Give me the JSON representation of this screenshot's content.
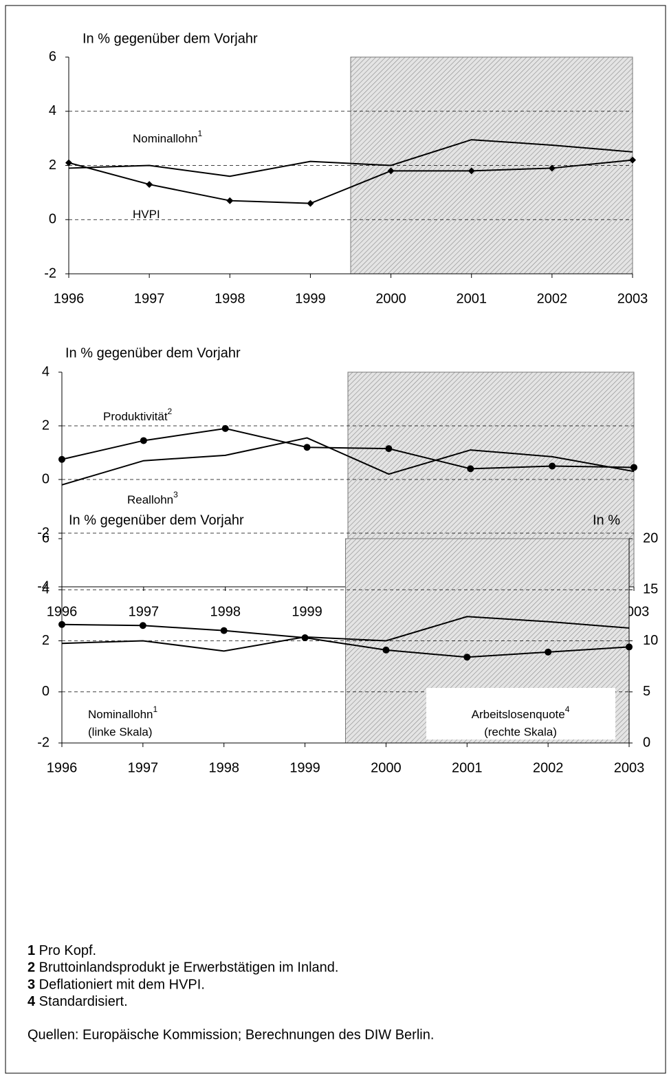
{
  "chart_data": [
    {
      "type": "line",
      "ylabel": "In % gegenüber dem Vorjahr",
      "x": [
        1996,
        1997,
        1998,
        1999,
        2000,
        2001,
        2002,
        2003
      ],
      "xlim": [
        1996,
        2003
      ],
      "xticks": [
        1996,
        1997,
        1998,
        1999,
        2000,
        2001,
        2002,
        2003
      ],
      "ylim": [
        -2,
        6
      ],
      "yticks": [
        6,
        4,
        2,
        0,
        -2
      ],
      "grid": true,
      "series": [
        {
          "name": "Nominallohn",
          "sup": "1",
          "color": "#000000",
          "marker": "none",
          "values": [
            1.9,
            2.0,
            1.6,
            2.15,
            2.0,
            2.95,
            2.75,
            2.5
          ]
        },
        {
          "name": "HVPI",
          "color": "#000000",
          "marker": "diamond",
          "values": [
            2.1,
            1.3,
            0.7,
            0.6,
            1.8,
            1.8,
            1.9,
            2.2
          ]
        }
      ]
    },
    {
      "type": "line",
      "ylabel": "In % gegenüber dem Vorjahr",
      "x": [
        1996,
        1997,
        1998,
        1999,
        2000,
        2001,
        2002,
        2003
      ],
      "xlim": [
        1996,
        2003
      ],
      "xticks": [
        1996,
        1997,
        1998,
        1999,
        2000,
        2001,
        2002,
        2003
      ],
      "ylim": [
        -4,
        4
      ],
      "yticks": [
        4,
        2,
        0,
        -2,
        -4
      ],
      "grid": true,
      "series": [
        {
          "name": "Produktivität",
          "sup": "2",
          "color": "#000000",
          "marker": "circle",
          "values": [
            0.75,
            1.45,
            1.9,
            1.2,
            1.15,
            0.4,
            0.5,
            0.45
          ]
        },
        {
          "name": "Reallohn",
          "sup": "3",
          "color": "#000000",
          "marker": "none",
          "values": [
            -0.2,
            0.7,
            0.9,
            1.55,
            0.2,
            1.1,
            0.85,
            0.3
          ]
        }
      ]
    },
    {
      "type": "line",
      "ylabel": "In % gegenüber dem Vorjahr",
      "y2label": "In %",
      "x": [
        1996,
        1997,
        1998,
        1999,
        2000,
        2001,
        2002,
        2003
      ],
      "xlim": [
        1996,
        2003
      ],
      "xticks": [
        1996,
        1997,
        1998,
        1999,
        2000,
        2001,
        2002,
        2003
      ],
      "ylim": [
        -2,
        6
      ],
      "yticks": [
        6,
        4,
        2,
        0,
        -2
      ],
      "y2lim": [
        0,
        20
      ],
      "y2ticks": [
        20,
        15,
        10,
        5,
        0
      ],
      "grid": true,
      "series": [
        {
          "name": "Nominallohn",
          "sup": "1",
          "note": "(linke Skala)",
          "color": "#000000",
          "marker": "none",
          "values": [
            1.9,
            2.0,
            1.6,
            2.15,
            2.0,
            2.95,
            2.75,
            2.5
          ]
        },
        {
          "name": "Arbeitslosenquote",
          "sup": "4",
          "note": "(rechte Skala)",
          "axis": "y2",
          "color": "#000000",
          "marker": "circle",
          "values": [
            11.6,
            11.5,
            11.0,
            10.3,
            9.1,
            8.4,
            8.9,
            9.4
          ]
        }
      ]
    }
  ],
  "footnotes": [
    {
      "number": "1",
      "text": " Pro Kopf."
    },
    {
      "number": "2",
      "text": " Bruttoinlandsprodukt je Erwerbstätigen im Inland."
    },
    {
      "number": "3",
      "text": " Deflationiert mit dem HVPI."
    },
    {
      "number": "4",
      "text": " Standardisiert."
    }
  ],
  "source": "Quellen: Europäische Kommission; Berechnungen des DIW Berlin."
}
